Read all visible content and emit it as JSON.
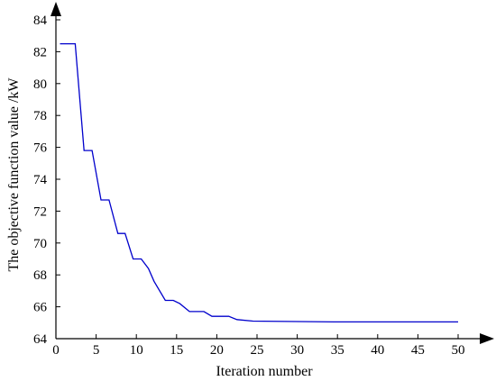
{
  "chart_data": {
    "type": "line",
    "title": "",
    "xlabel": "Iteration number",
    "ylabel": "The objective function value /kW",
    "xlim": [
      0,
      50
    ],
    "ylim": [
      64,
      85
    ],
    "x_ticks": [
      0,
      5,
      10,
      15,
      20,
      25,
      30,
      35,
      40,
      45,
      50
    ],
    "y_ticks": [
      64,
      66,
      68,
      70,
      72,
      74,
      76,
      78,
      80,
      82,
      84
    ],
    "grid": false,
    "line_color": "#0000cc",
    "series": [
      {
        "x": [
          0.5,
          2.4,
          3.5,
          4.5,
          5.6,
          6.6,
          7.7,
          8.6,
          9.6,
          10.6,
          11.5,
          12.2,
          13.6,
          14.6,
          15.4,
          16.6,
          18.4,
          19.4,
          21.5,
          22.5,
          24.5,
          34.5,
          50
        ],
        "y": [
          82.5,
          82.5,
          75.8,
          75.8,
          72.7,
          72.7,
          70.6,
          70.6,
          69.0,
          69.0,
          68.4,
          67.6,
          66.4,
          66.4,
          66.2,
          65.7,
          65.7,
          65.4,
          65.4,
          65.2,
          65.1,
          65.05,
          65.05
        ]
      }
    ]
  }
}
